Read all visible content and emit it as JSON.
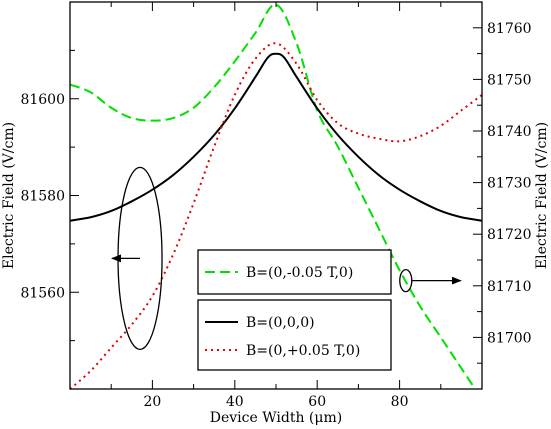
{
  "chart_data": {
    "type": "line",
    "xlabel": "Device Width (μm)",
    "ylabel_left": "Electric Field (V/cm)",
    "ylabel_right": "Electric Field (V/cm)",
    "xlim": [
      0,
      100
    ],
    "ylim_left": [
      81540,
      81620
    ],
    "ylim_right": [
      81690,
      81765
    ],
    "x_ticks": [
      20,
      40,
      60,
      80
    ],
    "y_ticks_left": [
      81560,
      81580,
      81600
    ],
    "y_ticks_right": [
      81700,
      81710,
      81720,
      81730,
      81740,
      81750,
      81760
    ],
    "grid": false,
    "series": [
      {
        "name": "B=(0,-0.05 T,0)",
        "axis": "right",
        "color": "#00e000",
        "dash": "dashed",
        "x": [
          0,
          5,
          10,
          15,
          20,
          25,
          30,
          35,
          40,
          45,
          50,
          55,
          60,
          65,
          70,
          75,
          80,
          85,
          90,
          95,
          100
        ],
        "y": [
          81749,
          81747.5,
          81744.5,
          81742.5,
          81742,
          81742.5,
          81744.5,
          81748.5,
          81753.5,
          81759,
          81764.5,
          81757,
          81744,
          81737,
          81729,
          81721,
          81713,
          81706,
          81700,
          81694,
          81688
        ]
      },
      {
        "name": "B=(0,0,0)",
        "axis": "left",
        "color": "#000000",
        "dash": "solid",
        "x": [
          0,
          5,
          10,
          15,
          20,
          25,
          30,
          35,
          40,
          45,
          48,
          50,
          52,
          55,
          60,
          65,
          70,
          75,
          80,
          85,
          90,
          95,
          100
        ],
        "y": [
          81574.8,
          81575.5,
          81576.8,
          81578.8,
          81581.2,
          81584.2,
          81588,
          81592.5,
          81598,
          81604.5,
          81608.5,
          81609.3,
          81608.5,
          81604.5,
          81598,
          81592.5,
          81588,
          81584.2,
          81581.2,
          81578.8,
          81576.8,
          81575.5,
          81574.8
        ]
      },
      {
        "name": "B=(0,+0.05 T,0)",
        "axis": "right",
        "color": "#e00000",
        "dash": "dotted",
        "x": [
          0,
          5,
          10,
          15,
          20,
          25,
          30,
          35,
          40,
          45,
          50,
          55,
          60,
          65,
          70,
          75,
          80,
          85,
          90,
          95,
          100
        ],
        "y": [
          81690,
          81693.5,
          81698,
          81702.5,
          81708,
          81716,
          81726,
          81737,
          81747,
          81754,
          81757,
          81753,
          81746,
          81741.5,
          81739.5,
          81738.5,
          81738,
          81739,
          81741,
          81744,
          81747
        ]
      }
    ],
    "legend": {
      "placement": "lower-center",
      "entries": [
        "B=(0,-0.05 T,0)",
        "B=(0,0,0)",
        "B=(0,+0.05 T,0)"
      ]
    },
    "annotations": [
      {
        "type": "ellipse-with-arrow",
        "target_axis": "left",
        "arrow_direction": "left",
        "x": 17,
        "y": 81567
      },
      {
        "type": "ellipse-with-arrow",
        "target_axis": "right",
        "arrow_direction": "right",
        "x": 81.5,
        "y": 81711
      }
    ]
  }
}
